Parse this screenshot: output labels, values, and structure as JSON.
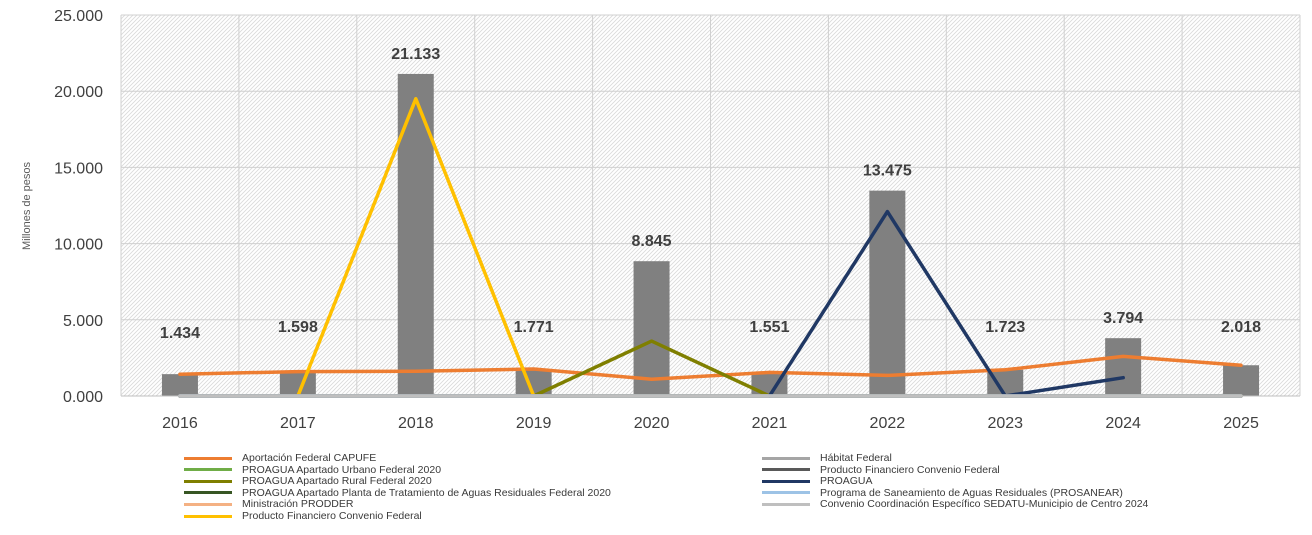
{
  "chart_data": {
    "type": "bar",
    "ylabel": "Millones de pesos",
    "ylim": [
      0,
      25
    ],
    "yticks": [
      {
        "value": 0,
        "label": "0.000"
      },
      {
        "value": 5,
        "label": "5.000"
      },
      {
        "value": 10,
        "label": "10.000"
      },
      {
        "value": 15,
        "label": "15.000"
      },
      {
        "value": 20,
        "label": "20.000"
      },
      {
        "value": 25,
        "label": "25.000"
      }
    ],
    "categories": [
      "2016",
      "2017",
      "2018",
      "2019",
      "2020",
      "2021",
      "2022",
      "2023",
      "2024",
      "2025"
    ],
    "bar_color": "#808080",
    "plot_background": "hatched-diagonal",
    "grid": true,
    "totals": {
      "values": [
        1.434,
        1.598,
        21.133,
        1.771,
        8.845,
        1.551,
        13.475,
        1.723,
        3.794,
        2.018
      ],
      "labels": [
        "1.434",
        "1.598",
        "21.133",
        "1.771",
        "8.845",
        "1.551",
        "13.475",
        "1.723",
        "3.794",
        "2.018"
      ]
    },
    "series": [
      {
        "name": "Aportación Federal CAPUFE",
        "type": "line",
        "color": "#ED7D31",
        "values": [
          1.43,
          1.6,
          1.63,
          1.77,
          1.1,
          1.55,
          1.35,
          1.72,
          2.6,
          2.02
        ]
      },
      {
        "name": "PROAGUA Apartado Urbano Federal 2020",
        "type": "line",
        "color": "#70AD47",
        "values": [
          0,
          0,
          0,
          0,
          0,
          0,
          0,
          0,
          0,
          0
        ]
      },
      {
        "name": "PROAGUA Apartado Rural Federal 2020",
        "type": "line",
        "color": "#7F7F00",
        "values": [
          null,
          null,
          null,
          0,
          3.6,
          0,
          null,
          null,
          null,
          null
        ]
      },
      {
        "name": "PROAGUA Apartado Planta de Tratamiento de Aguas Residuales Federal 2020",
        "type": "line",
        "color": "#375623",
        "values": [
          0,
          0,
          0,
          0,
          0,
          0,
          0,
          0,
          0,
          0
        ]
      },
      {
        "name": "Ministración PRODDER",
        "type": "line",
        "color": "#F4B183",
        "values": [
          0,
          0,
          0,
          0,
          0,
          0,
          0,
          0,
          0,
          0
        ]
      },
      {
        "name": "Producto Financiero Convenio Federal",
        "type": "line",
        "color": "#FFC000",
        "values": [
          null,
          0,
          19.5,
          0,
          0,
          0,
          0,
          0,
          0,
          0
        ]
      },
      {
        "name": "Hábitat Federal",
        "type": "line",
        "color": "#A5A5A5",
        "values": [
          0,
          0,
          0,
          0,
          0,
          0,
          0,
          0,
          0,
          0
        ]
      },
      {
        "name": "Producto Financiero Convenio Federal",
        "type": "line",
        "color": "#595959",
        "values": [
          0,
          0,
          0,
          0,
          0,
          0,
          0,
          0,
          0,
          0
        ]
      },
      {
        "name": "PROAGUA",
        "type": "line",
        "color": "#203864",
        "values": [
          null,
          null,
          null,
          null,
          null,
          0,
          12.1,
          0,
          1.2,
          null
        ]
      },
      {
        "name": "Programa de Saneamiento de Aguas Residuales (PROSANEAR)",
        "type": "line",
        "color": "#9DC3E6",
        "values": [
          0,
          0,
          0,
          0,
          0,
          0,
          0,
          0,
          0,
          0
        ]
      },
      {
        "name": "Convenio Coordinación Específico SEDATU-Municipio de Centro 2024",
        "type": "line",
        "color": "#BFBFBF",
        "values": [
          0,
          0,
          0,
          0,
          0,
          0,
          0,
          0,
          0,
          0
        ]
      }
    ],
    "legend": {
      "placement": "bottom",
      "left_column": [
        {
          "label": "Aportación Federal CAPUFE",
          "color": "#ED7D31"
        },
        {
          "label": "PROAGUA Apartado Urbano Federal 2020",
          "color": "#70AD47"
        },
        {
          "label": "PROAGUA Apartado Rural Federal 2020",
          "color": "#7F7F00"
        },
        {
          "label": "PROAGUA Apartado Planta de Tratamiento de Aguas Residuales Federal 2020",
          "color": "#375623"
        },
        {
          "label": "Ministración PRODDER",
          "color": "#F4B183"
        },
        {
          "label": "Producto Financiero Convenio Federal",
          "color": "#FFC000"
        }
      ],
      "right_column": [
        {
          "label": "Hábitat Federal",
          "color": "#A5A5A5"
        },
        {
          "label": "Producto Financiero Convenio Federal",
          "color": "#595959"
        },
        {
          "label": "PROAGUA",
          "color": "#203864"
        },
        {
          "label": "Programa de Saneamiento de Aguas Residuales (PROSANEAR)",
          "color": "#9DC3E6"
        },
        {
          "label": "Convenio Coordinación Específico SEDATU-Municipio de Centro 2024",
          "color": "#BFBFBF"
        }
      ]
    }
  }
}
